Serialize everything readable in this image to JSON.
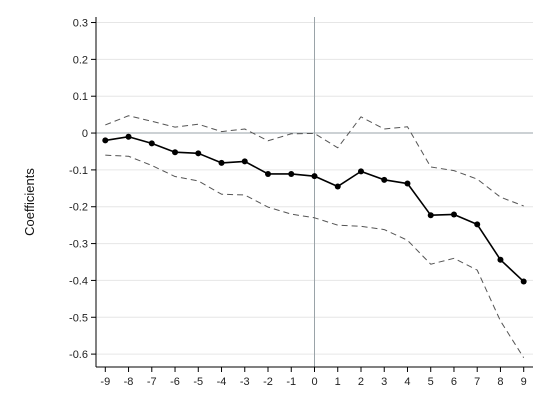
{
  "chart_data": {
    "type": "line",
    "title": "",
    "xlabel": "",
    "ylabel": "Coefficients",
    "x": [
      -9,
      -8,
      -7,
      -6,
      -5,
      -4,
      -3,
      -2,
      -1,
      0,
      1,
      2,
      3,
      4,
      5,
      6,
      7,
      8,
      9
    ],
    "xlim": [
      -9.4,
      9.4
    ],
    "ylim": [
      -0.635,
      0.315
    ],
    "xticks": [
      "-9",
      "-8",
      "-7",
      "-6",
      "-5",
      "-4",
      "-3",
      "-2",
      "-1",
      "0",
      "1",
      "2",
      "3",
      "4",
      "5",
      "6",
      "7",
      "8",
      "9"
    ],
    "yticks": [
      "0.3",
      "0.2",
      "0.1",
      "0",
      "-0.1",
      "-0.2",
      "-0.3",
      "-0.4",
      "-0.5",
      "-0.6"
    ],
    "grid": true,
    "legend": "none",
    "reference_lines": {
      "y": 0,
      "x": 0
    },
    "series": [
      {
        "values": [
          -0.02,
          -0.01,
          -0.028,
          -0.052,
          -0.055,
          -0.081,
          -0.077,
          -0.111,
          -0.111,
          -0.117,
          -0.145,
          -0.104,
          -0.127,
          -0.137,
          -0.223,
          -0.221,
          -0.248,
          -0.344,
          -0.403
        ],
        "color": "#000000",
        "style": "solid",
        "markers": true
      },
      {
        "values": [
          0.022,
          0.047,
          0.032,
          0.016,
          0.024,
          0.004,
          0.011,
          -0.021,
          -0.002,
          -0.001,
          -0.04,
          0.044,
          0.011,
          0.017,
          -0.092,
          -0.102,
          -0.125,
          -0.174,
          -0.198
        ],
        "color": "#555555",
        "style": "dashed",
        "markers": false
      },
      {
        "values": [
          -0.06,
          -0.063,
          -0.088,
          -0.118,
          -0.13,
          -0.166,
          -0.168,
          -0.201,
          -0.22,
          -0.23,
          -0.25,
          -0.253,
          -0.262,
          -0.291,
          -0.356,
          -0.34,
          -0.372,
          -0.51,
          -0.61
        ],
        "color": "#555555",
        "style": "dashed",
        "markers": false
      }
    ]
  }
}
